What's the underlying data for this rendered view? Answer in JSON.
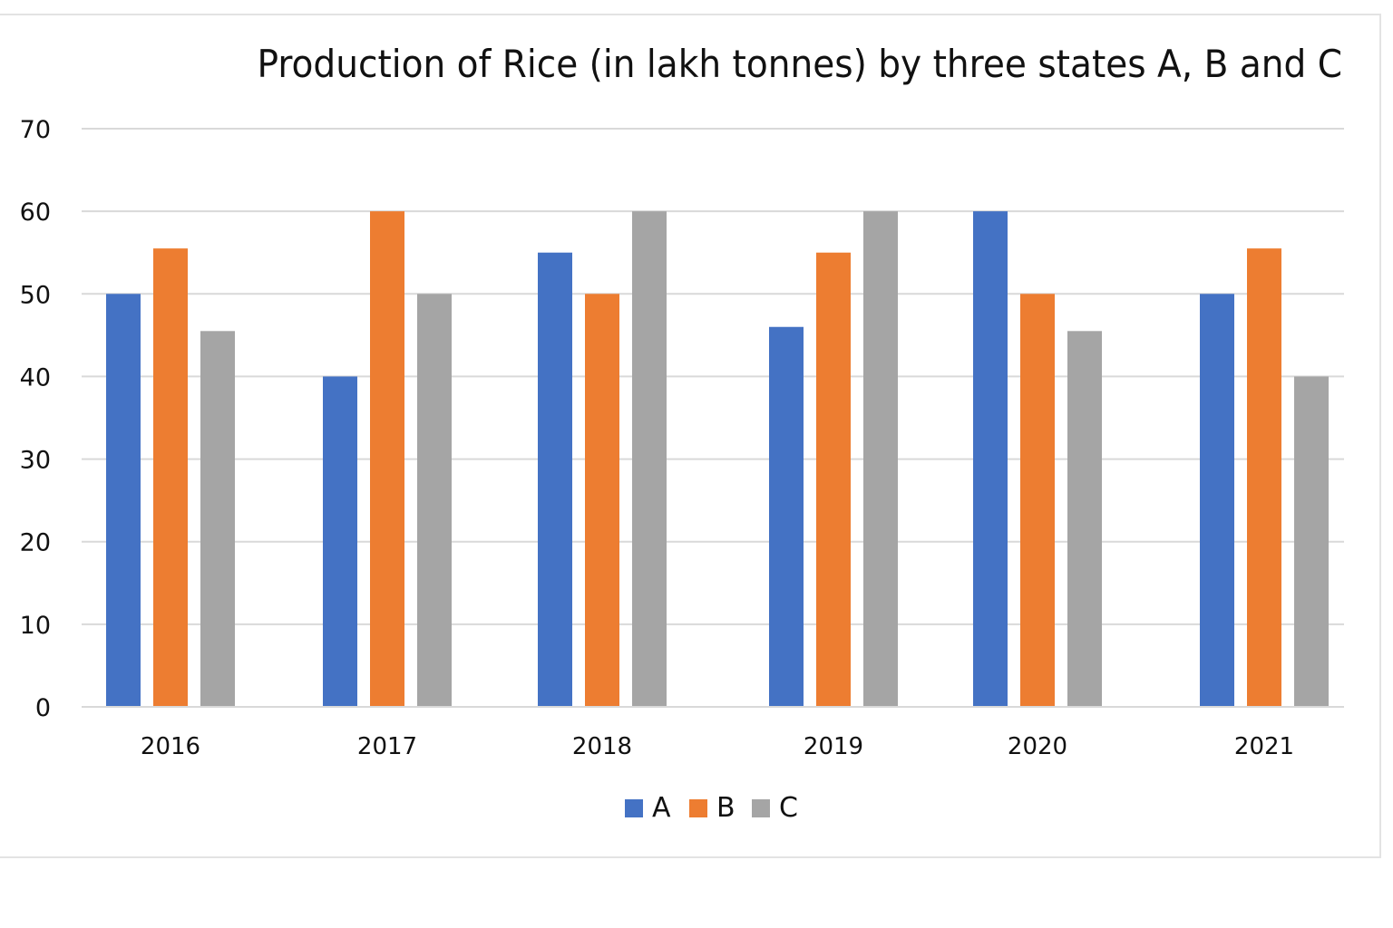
{
  "chart_data": {
    "type": "bar",
    "title": "Production of Rice (in lakh tonnes) by three states A, B and C",
    "xlabel": "",
    "ylabel": "",
    "ylabel_note": "y-axis title clipped at left edge; not legible",
    "categories": [
      "2016",
      "2017",
      "2018",
      "2019",
      "2020",
      "2021"
    ],
    "series": [
      {
        "name": "A",
        "color": "#4472C4",
        "values": [
          50,
          40,
          55,
          46,
          60,
          50
        ]
      },
      {
        "name": "B",
        "color": "#ED7D31",
        "values": [
          55.5,
          60,
          50,
          55,
          50,
          55.5
        ]
      },
      {
        "name": "C",
        "color": "#A5A5A5",
        "values": [
          45.5,
          50,
          60,
          60,
          45.5,
          40
        ]
      }
    ],
    "ylim": [
      0,
      70
    ],
    "yticks": [
      "0",
      "10",
      "20",
      "30",
      "40",
      "50",
      "60",
      "70"
    ],
    "grid": true,
    "legend_position": "bottom"
  },
  "colors": {
    "gridline": "#d9d9d9",
    "frame": "#e3e3e3"
  }
}
